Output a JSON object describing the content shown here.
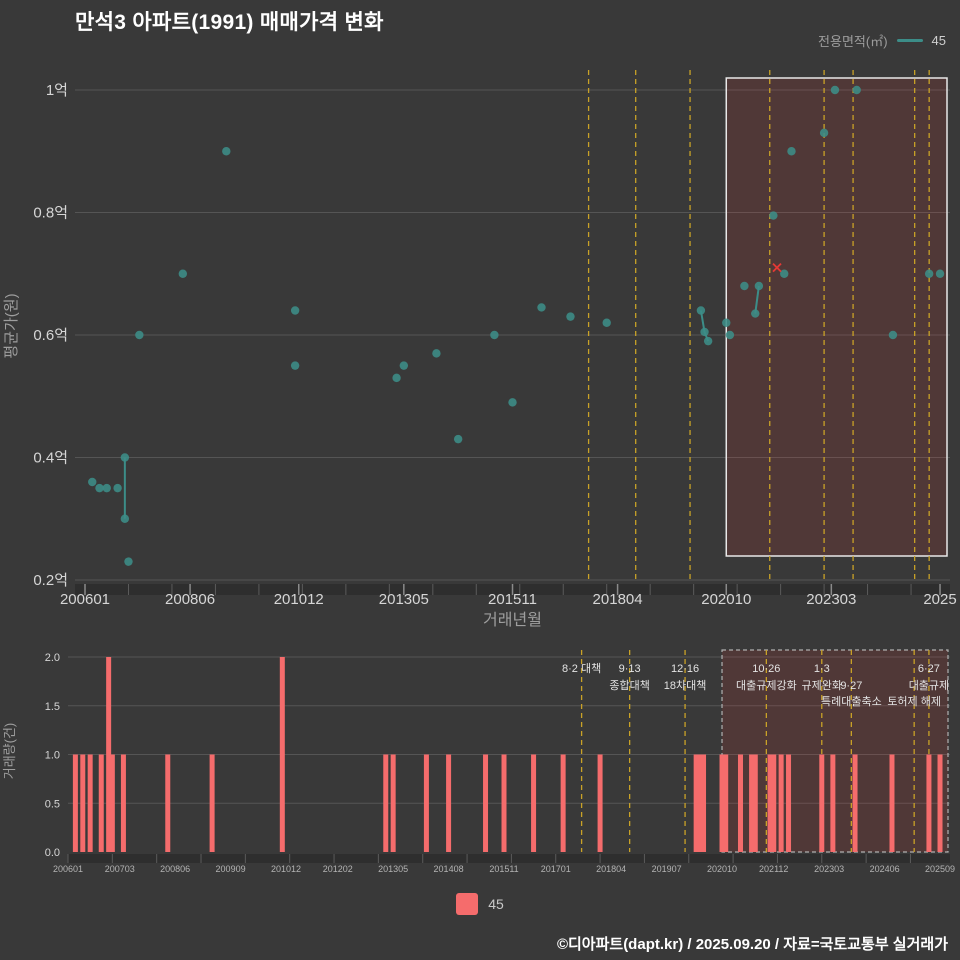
{
  "page": {
    "title": "만석3 아파트(1991) 매매가격 변화",
    "footer": "©디아파트(dapt.kr) / 2025.09.20 / 자료=국토교통부 실거래가"
  },
  "legend_top": {
    "label": "전용면적(㎡)",
    "value": "45"
  },
  "legend_bottom": {
    "value": "45"
  },
  "colors": {
    "background": "#393939",
    "title_text": "#ffffff",
    "grid": "#555555",
    "axis_text": "#d6d6d6",
    "axis_title_text": "#9e9e9e",
    "minor_text": "#b3b3b3",
    "series_teal": "#3c8d88",
    "bar_salmon": "#f56c6c",
    "policy_yellow": "#c9a227",
    "region_fill": "rgba(229,57,53,0.14)",
    "region_border_main": "#e8e8e8",
    "region_border_vol": "#b0b0b0",
    "cancel_red": "#e53935",
    "axis_band": "#2e2e2e",
    "annotation_text": "#e3e3e3"
  },
  "chart_data": {
    "type": "scatter+bar",
    "title": "만석3 아파트(1991) 매매가격 변화",
    "unit_note": "가격 단위: 억원 / x축: 거래년월(YYYY-MM)",
    "legend_position": "top-right",
    "highlight_region": {
      "from": "2020-10",
      "to": "2025-10"
    },
    "policy_lines": [
      {
        "month": "2017-08",
        "label_row1": "8·2 대책",
        "label_row2": "",
        "label_row3": ""
      },
      {
        "month": "2018-09",
        "label_row1": "9·13",
        "label_row2": "종합대책",
        "label_row3": ""
      },
      {
        "month": "2019-12",
        "label_row1": "12·16",
        "label_row2": "18차대책",
        "label_row3": ""
      },
      {
        "month": "2021-10",
        "label_row1": "10·26",
        "label_row2": "대출규제강화",
        "label_row3": ""
      },
      {
        "month": "2023-01",
        "label_row1": "1·3",
        "label_row2": "규제완화",
        "label_row3": ""
      },
      {
        "month": "2023-09",
        "label_row1": "",
        "label_row2": "9·27",
        "label_row3": "특례대출축소"
      },
      {
        "month": "2025-02",
        "label_row1": "",
        "label_row2": "",
        "label_row3": "토허제 해제"
      },
      {
        "month": "2025-06",
        "label_row1": "6·27",
        "label_row2": "대출규제",
        "label_row3": ""
      }
    ],
    "price_chart": {
      "type": "scatter",
      "ylabel": "평균가(원)",
      "xlabel": "거래년월",
      "ylim": [
        0.2,
        1.0
      ],
      "grid": "horizontal",
      "yticks": [
        {
          "value": 0.2,
          "label": "0.2억"
        },
        {
          "value": 0.4,
          "label": "0.4억"
        },
        {
          "value": 0.6,
          "label": "0.6억"
        },
        {
          "value": 0.8,
          "label": "0.8억"
        },
        {
          "value": 1.0,
          "label": "1억"
        }
      ],
      "xticks": [
        {
          "month": "2006-01",
          "label": "200601"
        },
        {
          "month": "2008-06",
          "label": "200806"
        },
        {
          "month": "2010-12",
          "label": "201012"
        },
        {
          "month": "2013-05",
          "label": "201305"
        },
        {
          "month": "2015-11",
          "label": "201511"
        },
        {
          "month": "2018-04",
          "label": "201804"
        },
        {
          "month": "2020-10",
          "label": "202010"
        },
        {
          "month": "2023-03",
          "label": "202303"
        },
        {
          "month": "2025-09",
          "label": "2025"
        }
      ],
      "series": [
        {
          "name": "45",
          "points": [
            [
              "2006-03",
              0.36
            ],
            [
              "2006-05",
              0.35
            ],
            [
              "2006-07",
              0.35
            ],
            [
              "2006-10",
              0.35
            ],
            [
              "2006-12",
              0.4
            ],
            [
              "2006-12",
              0.3
            ],
            [
              "2007-01",
              0.23
            ],
            [
              "2007-04",
              0.6
            ],
            [
              "2008-04",
              0.7
            ],
            [
              "2009-04",
              0.9
            ],
            [
              "2010-11",
              0.64
            ],
            [
              "2010-11",
              0.55
            ],
            [
              "2013-03",
              0.53
            ],
            [
              "2013-05",
              0.55
            ],
            [
              "2014-02",
              0.57
            ],
            [
              "2014-08",
              0.43
            ],
            [
              "2015-06",
              0.6
            ],
            [
              "2015-11",
              0.49
            ],
            [
              "2016-07",
              0.645
            ],
            [
              "2017-03",
              0.63
            ],
            [
              "2018-01",
              0.62
            ],
            [
              "2020-03",
              0.64
            ],
            [
              "2020-04",
              0.605
            ],
            [
              "2020-05",
              0.59
            ],
            [
              "2020-10",
              0.62
            ],
            [
              "2020-11",
              0.6
            ],
            [
              "2021-03",
              0.68
            ],
            [
              "2021-06",
              0.635
            ],
            [
              "2021-07",
              0.68
            ],
            [
              "2021-11",
              0.795
            ],
            [
              "2022-02",
              0.7
            ],
            [
              "2022-04",
              0.9
            ],
            [
              "2023-01",
              0.93
            ],
            [
              "2023-04",
              1.0
            ],
            [
              "2023-10",
              1.0
            ],
            [
              "2024-08",
              0.6
            ],
            [
              "2025-06",
              0.7
            ],
            [
              "2025-09",
              0.7
            ]
          ]
        }
      ],
      "cancelled_points": [
        [
          "2021-12",
          0.71
        ]
      ],
      "connected_segments": [
        [
          [
            "2006-12",
            0.4
          ],
          [
            "2006-12",
            0.3
          ]
        ],
        [
          [
            "2020-03",
            0.64
          ],
          [
            "2020-04",
            0.605
          ],
          [
            "2020-05",
            0.59
          ]
        ],
        [
          [
            "2021-06",
            0.635
          ],
          [
            "2021-07",
            0.68
          ]
        ]
      ]
    },
    "volume_chart": {
      "type": "bar",
      "ylabel": "거래량(건)",
      "ylim": [
        0,
        2
      ],
      "yticks": [
        {
          "value": 0,
          "label": "0.0"
        },
        {
          "value": 0.5,
          "label": "0.5"
        },
        {
          "value": 1,
          "label": "1.0"
        },
        {
          "value": 1.5,
          "label": "1.5"
        },
        {
          "value": 2,
          "label": "2.0"
        }
      ],
      "xticks": [
        {
          "month": "2006-01",
          "label": "200601"
        },
        {
          "month": "2007-03",
          "label": "200703"
        },
        {
          "month": "2008-06",
          "label": "200806"
        },
        {
          "month": "2009-09",
          "label": "200909"
        },
        {
          "month": "2010-12",
          "label": "201012"
        },
        {
          "month": "2012-02",
          "label": "201202"
        },
        {
          "month": "2013-05",
          "label": "201305"
        },
        {
          "month": "2014-08",
          "label": "201408"
        },
        {
          "month": "2015-11",
          "label": "201511"
        },
        {
          "month": "2017-01",
          "label": "201701"
        },
        {
          "month": "2018-04",
          "label": "201804"
        },
        {
          "month": "2019-07",
          "label": "201907"
        },
        {
          "month": "2020-10",
          "label": "202010"
        },
        {
          "month": "2021-12",
          "label": "202112"
        },
        {
          "month": "2023-03",
          "label": "202303"
        },
        {
          "month": "2024-06",
          "label": "202406"
        },
        {
          "month": "2025-09",
          "label": "202509"
        }
      ],
      "series": [
        {
          "name": "45",
          "bars": [
            [
              "2006-03",
              1
            ],
            [
              "2006-05",
              1
            ],
            [
              "2006-07",
              1
            ],
            [
              "2006-10",
              1
            ],
            [
              "2006-12",
              2
            ],
            [
              "2007-01",
              1
            ],
            [
              "2007-04",
              1
            ],
            [
              "2008-04",
              1
            ],
            [
              "2009-04",
              1
            ],
            [
              "2010-11",
              2
            ],
            [
              "2013-03",
              1
            ],
            [
              "2013-05",
              1
            ],
            [
              "2014-02",
              1
            ],
            [
              "2014-08",
              1
            ],
            [
              "2015-06",
              1
            ],
            [
              "2015-11",
              1
            ],
            [
              "2016-07",
              1
            ],
            [
              "2017-03",
              1
            ],
            [
              "2018-01",
              1
            ],
            [
              "2020-03",
              1
            ],
            [
              "2020-04",
              1
            ],
            [
              "2020-05",
              1
            ],
            [
              "2020-10",
              1
            ],
            [
              "2020-11",
              1
            ],
            [
              "2021-03",
              1
            ],
            [
              "2021-06",
              1
            ],
            [
              "2021-07",
              1
            ],
            [
              "2021-11",
              1
            ],
            [
              "2021-12",
              1
            ],
            [
              "2022-02",
              1
            ],
            [
              "2022-04",
              1
            ],
            [
              "2023-01",
              1
            ],
            [
              "2023-04",
              1
            ],
            [
              "2023-10",
              1
            ],
            [
              "2024-08",
              1
            ],
            [
              "2025-06",
              1
            ],
            [
              "2025-09",
              1
            ]
          ]
        }
      ]
    }
  }
}
